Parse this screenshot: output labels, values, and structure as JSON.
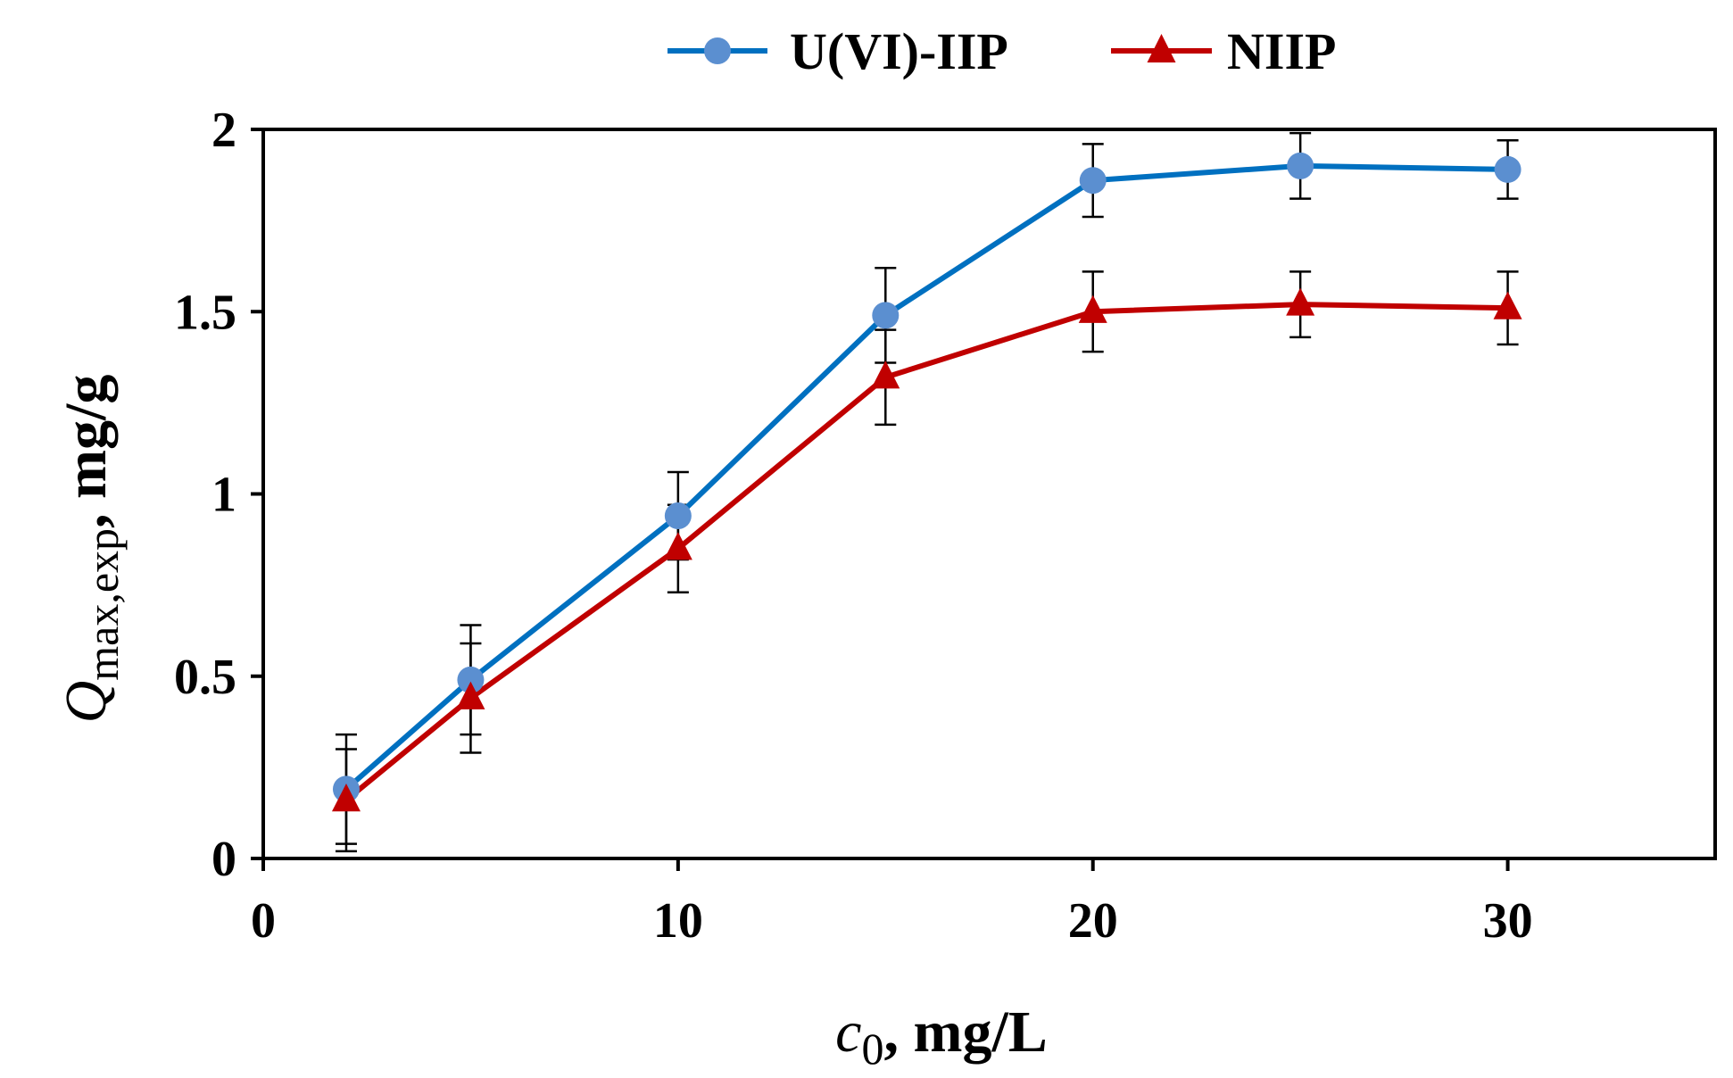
{
  "chart_data": {
    "type": "line",
    "x": [
      2,
      5,
      10,
      15,
      20,
      25,
      30
    ],
    "xlim": [
      0,
      35
    ],
    "ylim": [
      0,
      2
    ],
    "xticks": [
      0,
      10,
      20,
      30
    ],
    "xtick_labels": [
      "0",
      "10",
      "20",
      "30"
    ],
    "yticks": [
      0,
      0.5,
      1,
      1.5,
      2
    ],
    "ytick_labels": [
      "0",
      "0.5",
      "1",
      "1.5",
      "2"
    ],
    "xlabel": {
      "symbol": "c",
      "subscript": "0",
      "rest": ", mg/L"
    },
    "ylabel": {
      "symbol": "Q",
      "subscript": "max,exp",
      "rest": ", mg/g"
    },
    "grid": false,
    "legend_position": "top",
    "series": [
      {
        "name": "U(VI)-IIP",
        "color": "#0070C0",
        "marker_color": "#5B8FD0",
        "marker": "circle",
        "values": [
          0.19,
          0.49,
          0.94,
          1.49,
          1.86,
          1.9,
          1.89
        ],
        "errors": [
          0.15,
          0.15,
          0.12,
          0.13,
          0.1,
          0.09,
          0.08
        ]
      },
      {
        "name": "NIIP",
        "color": "#C00000",
        "marker_color": "#C00000",
        "marker": "triangle",
        "values": [
          0.16,
          0.44,
          0.85,
          1.32,
          1.5,
          1.52,
          1.51
        ],
        "errors": [
          0.14,
          0.15,
          0.12,
          0.13,
          0.11,
          0.09,
          0.1
        ]
      }
    ]
  }
}
